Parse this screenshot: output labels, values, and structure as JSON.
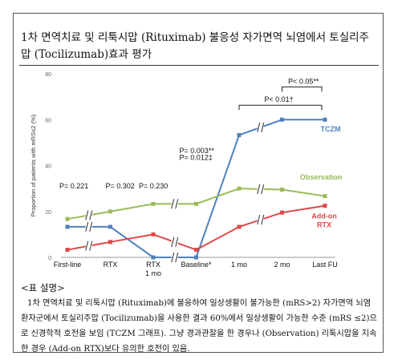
{
  "title": "1차 면역치료 및 리툭시맙 (Rituximab) 불응성 자가면역 뇌염에서 토실리주맙 (Tocilizumab)효과 평가",
  "caption_heading": "<표 설명>",
  "caption_body": "1차 면역치료 및 리툭시맙 (Rituximab)에 불응하여 일상생활이 불가능한 (mRS>2) 자가면역 뇌염 환자군에서 토실리주맙 (Tocilizumab)을 사용한 결과 60%에서 일상생활이 가능한 수준 (mRS ≤2)으로 신경학적 호전을 보임 (TCZM 그래프). 그냥 경과관찰을 한 경우나 (Observation) 리툭시맙을 지속한 경우 (Add-on RTX)보다 유의한 호전이 있음.",
  "chart_data": {
    "type": "line",
    "title": "",
    "xlabel": "",
    "ylabel": "Proportion of patients with mRS≤2 (%)",
    "ylim": [
      0,
      80
    ],
    "yticks": [
      0,
      20,
      40,
      60,
      80
    ],
    "categories": [
      "First-line",
      "RTX",
      "RTX\n1 mo",
      "Baseline*",
      "1 mo",
      "2 mo",
      "Last FU"
    ],
    "grid": false,
    "series": [
      {
        "name": "TCZM",
        "color": "#4f81bd",
        "values": [
          13.3,
          13.3,
          0,
          0,
          53.3,
          60,
          60
        ]
      },
      {
        "name": "Observation",
        "color": "#9bbb59",
        "values": [
          16.7,
          20,
          23.3,
          23.3,
          30,
          29.5,
          26.7
        ]
      },
      {
        "name": "Add-on\nRTX",
        "color": "#e04848",
        "values": [
          3.3,
          6.7,
          10,
          3.3,
          13.3,
          19.5,
          22.5
        ]
      }
    ],
    "p_values": [
      "P= 0.221",
      "P= 0.302",
      "P= 0.230",
      "P= 0.003**",
      "P= 0.012‡"
    ],
    "brackets": [
      "P< 0.01†",
      "P< 0.05**"
    ]
  }
}
